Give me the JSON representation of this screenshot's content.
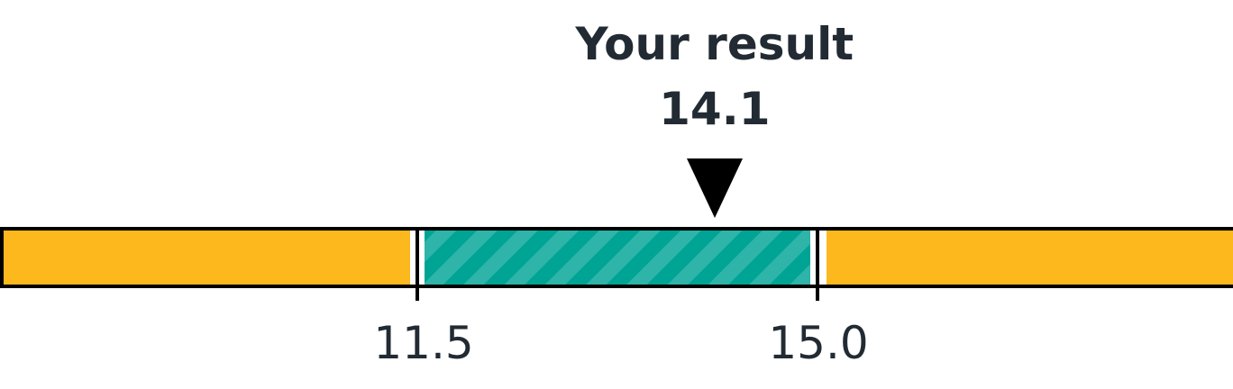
{
  "result": {
    "title": "Your result",
    "value": 14.1,
    "value_text": "14.1"
  },
  "range": {
    "low": 11.5,
    "high": 15.0,
    "low_label": "11.5",
    "high_label": "15.0"
  },
  "colors": {
    "low": "#fdb81e",
    "normal": "#00a495",
    "high": "#fdb81e",
    "marker": "#000000",
    "text": "#222b33"
  }
}
